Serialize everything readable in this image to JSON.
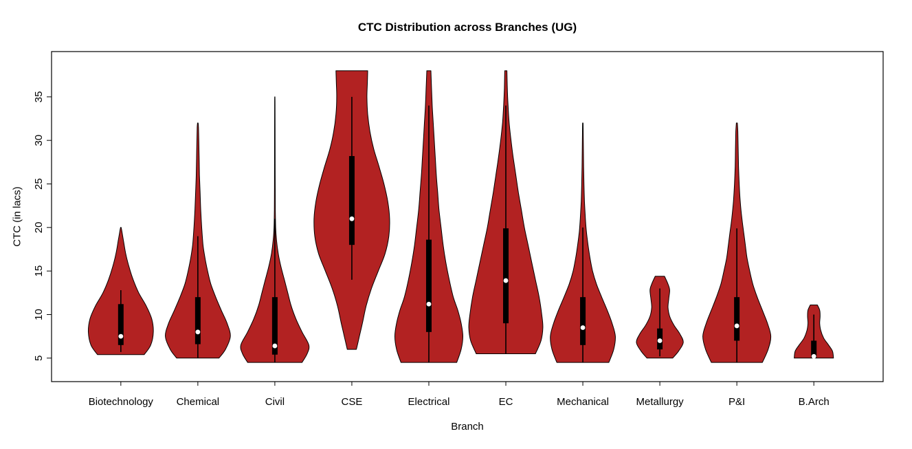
{
  "chart": {
    "title": "CTC Distribution across Branches (UG)",
    "xlabel": "Branch",
    "ylabel": "CTC (in lacs)"
  },
  "chart_data": {
    "type": "violin",
    "title": "CTC Distribution across Branches (UG)",
    "xlabel": "Branch",
    "ylabel": "CTC (in lacs)",
    "ylim": [
      2.3,
      40.2
    ],
    "yticks": [
      5,
      10,
      15,
      20,
      25,
      30,
      35
    ],
    "grid": false,
    "legend": "none",
    "violin_fill_color": "#B22222",
    "violin_stroke_color": "#000000",
    "box_color": "#000000",
    "median_dot_color": "#ffffff",
    "categories": [
      "Biotechnology",
      "Chemical",
      "Civil",
      "CSE",
      "Electrical",
      "EC",
      "Mechanical",
      "Metallurgy",
      "P&I",
      "B.Arch"
    ],
    "series": [
      {
        "name": "Biotechnology",
        "min": 5.4,
        "max": 20,
        "q1": 6.5,
        "median": 7.5,
        "q3": 11.2,
        "whisker_low": 5.7,
        "whisker_high": 12.8,
        "width_scale": 0.86,
        "density": [
          [
            5.4,
            0.72
          ],
          [
            6.5,
            0.92
          ],
          [
            8,
            1.0
          ],
          [
            9.5,
            0.95
          ],
          [
            11,
            0.78
          ],
          [
            12.5,
            0.55
          ],
          [
            14,
            0.38
          ],
          [
            15.5,
            0.25
          ],
          [
            17,
            0.15
          ],
          [
            18.5,
            0.08
          ],
          [
            19.6,
            0.03
          ],
          [
            20,
            0.01
          ]
        ]
      },
      {
        "name": "Chemical",
        "min": 5.0,
        "max": 32,
        "q1": 6.6,
        "median": 8.0,
        "q3": 12.0,
        "whisker_low": 5.0,
        "whisker_high": 19.0,
        "width_scale": 0.86,
        "density": [
          [
            5.0,
            0.65
          ],
          [
            6,
            0.85
          ],
          [
            7.5,
            1.0
          ],
          [
            9,
            0.9
          ],
          [
            10.5,
            0.72
          ],
          [
            12,
            0.55
          ],
          [
            13.5,
            0.4
          ],
          [
            15,
            0.3
          ],
          [
            16.5,
            0.22
          ],
          [
            18,
            0.16
          ],
          [
            20,
            0.12
          ],
          [
            22,
            0.09
          ],
          [
            24,
            0.07
          ],
          [
            26,
            0.05
          ],
          [
            28,
            0.04
          ],
          [
            30,
            0.03
          ],
          [
            31.5,
            0.02
          ],
          [
            32,
            0.01
          ]
        ]
      },
      {
        "name": "Civil",
        "min": 4.5,
        "max": 35,
        "q1": 5.4,
        "median": 6.4,
        "q3": 12.0,
        "whisker_low": 4.5,
        "whisker_high": 21.0,
        "width_scale": 0.9,
        "density": [
          [
            4.5,
            0.8
          ],
          [
            5.5,
            0.95
          ],
          [
            6.5,
            1.0
          ],
          [
            8,
            0.8
          ],
          [
            9.5,
            0.62
          ],
          [
            11,
            0.48
          ],
          [
            12.5,
            0.38
          ],
          [
            14,
            0.28
          ],
          [
            15.5,
            0.18
          ],
          [
            17,
            0.1
          ],
          [
            18.5,
            0.05
          ],
          [
            20,
            0.025
          ],
          [
            22,
            0.015
          ],
          [
            26,
            0.01
          ],
          [
            30,
            0.008
          ],
          [
            34,
            0.006
          ],
          [
            35,
            0.004
          ]
        ]
      },
      {
        "name": "CSE",
        "min": 6.0,
        "max": 38,
        "q1": 18.0,
        "median": 21.0,
        "q3": 28.2,
        "whisker_low": 14.0,
        "whisker_high": 35.0,
        "width_scale": 1.0,
        "density": [
          [
            6,
            0.12
          ],
          [
            7.5,
            0.2
          ],
          [
            9,
            0.28
          ],
          [
            11,
            0.38
          ],
          [
            13,
            0.52
          ],
          [
            15,
            0.7
          ],
          [
            17,
            0.88
          ],
          [
            19,
            0.98
          ],
          [
            21,
            1.0
          ],
          [
            23,
            0.95
          ],
          [
            25,
            0.85
          ],
          [
            27,
            0.72
          ],
          [
            29,
            0.58
          ],
          [
            31,
            0.48
          ],
          [
            33,
            0.42
          ],
          [
            35,
            0.4
          ],
          [
            36.5,
            0.41
          ],
          [
            38,
            0.42
          ]
        ]
      },
      {
        "name": "Electrical",
        "min": 4.5,
        "max": 38,
        "q1": 8.0,
        "median": 11.2,
        "q3": 18.6,
        "whisker_low": 4.5,
        "whisker_high": 34.0,
        "width_scale": 0.9,
        "density": [
          [
            4.5,
            0.82
          ],
          [
            6,
            0.95
          ],
          [
            7.5,
            1.0
          ],
          [
            9,
            0.95
          ],
          [
            10.5,
            0.85
          ],
          [
            12,
            0.72
          ],
          [
            14,
            0.6
          ],
          [
            16,
            0.5
          ],
          [
            18,
            0.42
          ],
          [
            20,
            0.36
          ],
          [
            22,
            0.3
          ],
          [
            24,
            0.26
          ],
          [
            26,
            0.22
          ],
          [
            28,
            0.19
          ],
          [
            30,
            0.16
          ],
          [
            32,
            0.13
          ],
          [
            34,
            0.1
          ],
          [
            36,
            0.08
          ],
          [
            38,
            0.06
          ]
        ]
      },
      {
        "name": "EC",
        "min": 5.5,
        "max": 38,
        "q1": 9.0,
        "median": 13.9,
        "q3": 19.9,
        "whisker_low": 5.5,
        "whisker_high": 34.0,
        "width_scale": 0.98,
        "density": [
          [
            5.5,
            0.8
          ],
          [
            7,
            0.95
          ],
          [
            8.5,
            1.0
          ],
          [
            10,
            0.97
          ],
          [
            12,
            0.9
          ],
          [
            14,
            0.8
          ],
          [
            16,
            0.7
          ],
          [
            18,
            0.6
          ],
          [
            20,
            0.5
          ],
          [
            22,
            0.42
          ],
          [
            24,
            0.34
          ],
          [
            26,
            0.27
          ],
          [
            28,
            0.2
          ],
          [
            30,
            0.14
          ],
          [
            32,
            0.09
          ],
          [
            34,
            0.06
          ],
          [
            36,
            0.04
          ],
          [
            38,
            0.03
          ]
        ]
      },
      {
        "name": "Mechanical",
        "min": 4.5,
        "max": 32,
        "q1": 6.5,
        "median": 8.5,
        "q3": 12.0,
        "whisker_low": 4.5,
        "whisker_high": 20.0,
        "width_scale": 0.86,
        "density": [
          [
            4.5,
            0.8
          ],
          [
            6,
            0.95
          ],
          [
            7.5,
            1.0
          ],
          [
            9,
            0.9
          ],
          [
            10.5,
            0.75
          ],
          [
            12,
            0.58
          ],
          [
            13.5,
            0.42
          ],
          [
            15,
            0.3
          ],
          [
            16.5,
            0.22
          ],
          [
            18,
            0.16
          ],
          [
            19.5,
            0.11
          ],
          [
            21,
            0.08
          ],
          [
            23,
            0.05
          ],
          [
            25,
            0.035
          ],
          [
            27,
            0.025
          ],
          [
            29,
            0.018
          ],
          [
            31,
            0.012
          ],
          [
            32,
            0.008
          ]
        ]
      },
      {
        "name": "Metallurgy",
        "min": 5.0,
        "max": 14.4,
        "q1": 6.0,
        "median": 7.0,
        "q3": 8.4,
        "whisker_low": 5.2,
        "whisker_high": 13.0,
        "width_scale": 0.62,
        "density": [
          [
            5.0,
            0.55
          ],
          [
            5.8,
            0.8
          ],
          [
            6.8,
            1.0
          ],
          [
            7.8,
            0.85
          ],
          [
            8.8,
            0.6
          ],
          [
            9.8,
            0.42
          ],
          [
            10.8,
            0.35
          ],
          [
            11.8,
            0.38
          ],
          [
            12.8,
            0.42
          ],
          [
            13.5,
            0.35
          ],
          [
            14.4,
            0.2
          ]
        ]
      },
      {
        "name": "P&I",
        "min": 4.5,
        "max": 32,
        "q1": 7.0,
        "median": 8.7,
        "q3": 12.0,
        "whisker_low": 4.5,
        "whisker_high": 19.9,
        "width_scale": 0.9,
        "density": [
          [
            4.5,
            0.75
          ],
          [
            6,
            0.92
          ],
          [
            7.5,
            1.0
          ],
          [
            9,
            0.9
          ],
          [
            10.5,
            0.75
          ],
          [
            12,
            0.6
          ],
          [
            13.5,
            0.47
          ],
          [
            15,
            0.38
          ],
          [
            16.5,
            0.3
          ],
          [
            18,
            0.25
          ],
          [
            19.5,
            0.2
          ],
          [
            21,
            0.15
          ],
          [
            23,
            0.1
          ],
          [
            25,
            0.07
          ],
          [
            27,
            0.05
          ],
          [
            29,
            0.04
          ],
          [
            31,
            0.03
          ],
          [
            32,
            0.015
          ]
        ]
      },
      {
        "name": "B.Arch",
        "min": 5.0,
        "max": 11.1,
        "q1": 5.0,
        "median": 5.2,
        "q3": 7.0,
        "whisker_low": 5.0,
        "whisker_high": 10.0,
        "width_scale": 0.52,
        "density": [
          [
            5.0,
            1.0
          ],
          [
            5.8,
            0.95
          ],
          [
            6.5,
            0.75
          ],
          [
            7.3,
            0.5
          ],
          [
            8.2,
            0.35
          ],
          [
            9,
            0.3
          ],
          [
            9.8,
            0.32
          ],
          [
            10.5,
            0.3
          ],
          [
            11.1,
            0.18
          ]
        ]
      }
    ]
  }
}
